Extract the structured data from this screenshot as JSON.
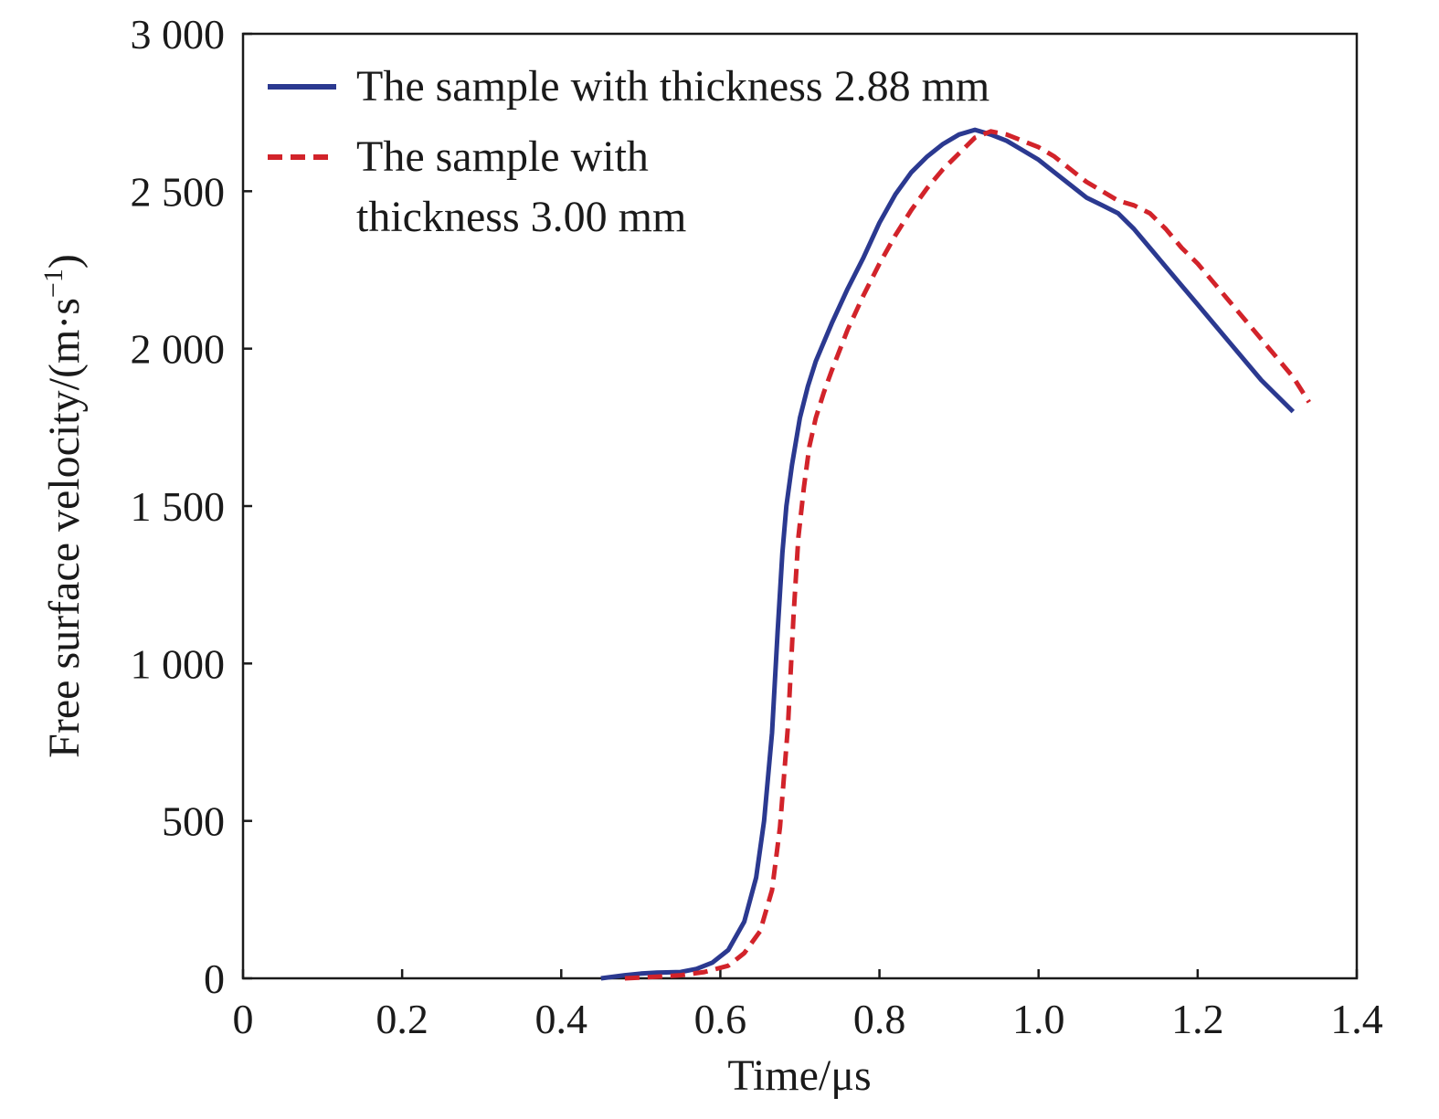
{
  "chart_data": {
    "type": "line",
    "title": "",
    "xlabel": "Time/μs",
    "ylabel": "Free surface velocity/(m·s",
    "ylabel_superscript": "−1",
    "ylabel_suffix": ")",
    "xlim": [
      0,
      1.4
    ],
    "ylim": [
      0,
      3000
    ],
    "x_ticks": [
      0,
      0.2,
      0.4,
      0.6,
      0.8,
      1.0,
      1.2,
      1.4
    ],
    "x_tick_labels": [
      "0",
      "0.2",
      "0.4",
      "0.6",
      "0.8",
      "1.0",
      "1.2",
      "1.4"
    ],
    "y_ticks": [
      0,
      500,
      1000,
      1500,
      2000,
      2500,
      3000
    ],
    "y_tick_labels": [
      "0",
      "500",
      "1 000",
      "1 500",
      "2 000",
      "2 500",
      "3 000"
    ],
    "grid": false,
    "legend_position": "top-left",
    "series": [
      {
        "name": "The sample with thickness 2.88 mm",
        "color": "#2b3990",
        "dash": "solid",
        "x": [
          0.45,
          0.48,
          0.5,
          0.52,
          0.55,
          0.57,
          0.59,
          0.61,
          0.63,
          0.645,
          0.655,
          0.665,
          0.672,
          0.678,
          0.683,
          0.69,
          0.7,
          0.71,
          0.72,
          0.74,
          0.76,
          0.78,
          0.8,
          0.82,
          0.84,
          0.86,
          0.88,
          0.9,
          0.92,
          0.94,
          0.96,
          0.98,
          1.0,
          1.02,
          1.04,
          1.06,
          1.08,
          1.1,
          1.12,
          1.14,
          1.16,
          1.18,
          1.2,
          1.22,
          1.24,
          1.26,
          1.28,
          1.3,
          1.32
        ],
        "y": [
          0,
          10,
          15,
          18,
          20,
          30,
          50,
          90,
          180,
          320,
          500,
          780,
          1100,
          1350,
          1500,
          1630,
          1780,
          1880,
          1960,
          2080,
          2190,
          2290,
          2400,
          2490,
          2560,
          2610,
          2650,
          2680,
          2695,
          2680,
          2660,
          2630,
          2600,
          2560,
          2520,
          2480,
          2455,
          2430,
          2380,
          2320,
          2260,
          2200,
          2140,
          2080,
          2020,
          1960,
          1900,
          1850,
          1800
        ]
      },
      {
        "name": "The sample with thickness 3.00 mm",
        "color": "#d2232a",
        "dash": "dashed",
        "x": [
          0.48,
          0.52,
          0.55,
          0.58,
          0.61,
          0.63,
          0.65,
          0.665,
          0.675,
          0.685,
          0.692,
          0.698,
          0.705,
          0.712,
          0.72,
          0.73,
          0.74,
          0.76,
          0.78,
          0.8,
          0.82,
          0.84,
          0.86,
          0.88,
          0.9,
          0.92,
          0.94,
          0.96,
          0.98,
          1.0,
          1.02,
          1.04,
          1.06,
          1.08,
          1.1,
          1.12,
          1.14,
          1.16,
          1.18,
          1.2,
          1.22,
          1.24,
          1.26,
          1.28,
          1.3,
          1.32,
          1.34
        ],
        "y": [
          0,
          5,
          10,
          20,
          40,
          80,
          150,
          280,
          480,
          800,
          1150,
          1400,
          1560,
          1690,
          1780,
          1860,
          1930,
          2060,
          2170,
          2270,
          2360,
          2440,
          2510,
          2570,
          2620,
          2670,
          2690,
          2680,
          2660,
          2640,
          2610,
          2570,
          2530,
          2500,
          2470,
          2455,
          2430,
          2380,
          2320,
          2270,
          2210,
          2150,
          2090,
          2030,
          1970,
          1910,
          1830
        ]
      }
    ]
  }
}
